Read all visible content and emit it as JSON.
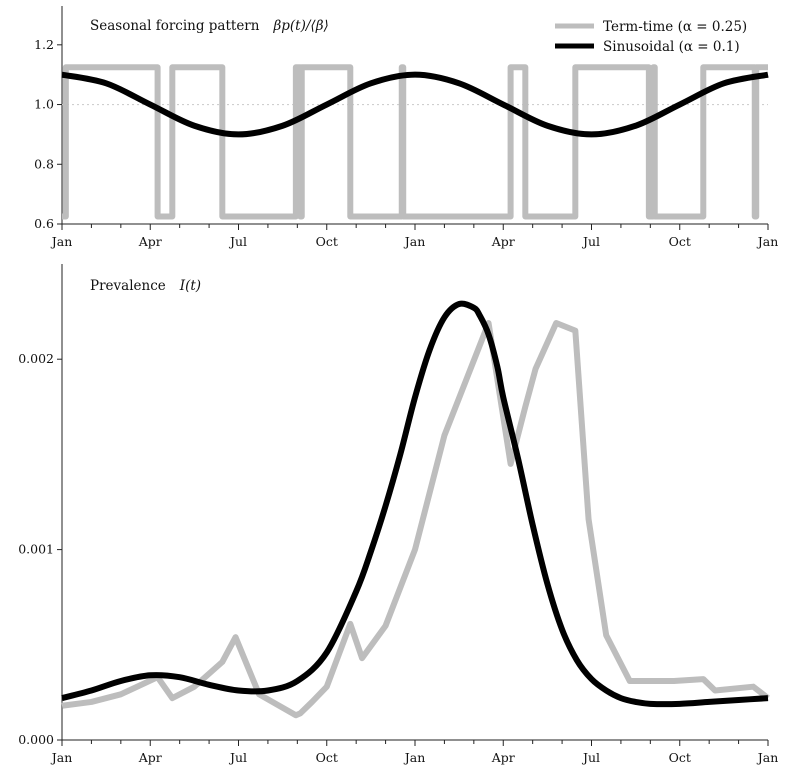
{
  "colors": {
    "term_time": "#bdbdbd",
    "sinusoidal": "#000000",
    "reference_line": "#cfcfcf"
  },
  "chart_data": [
    {
      "type": "line",
      "title": "Seasonal forcing pattern",
      "title_math": "βp(t)/⟨β⟩",
      "xlabel": "",
      "ylabel": "",
      "x_tick_labels": [
        "Jan",
        "Apr",
        "Jul",
        "Oct",
        "Jan",
        "Apr",
        "Jul",
        "Oct",
        "Jan"
      ],
      "y_ticks": [
        "0.6",
        "0.8",
        "1.0",
        "1.2"
      ],
      "xlim_months": [
        0,
        24
      ],
      "ylim": [
        0.6,
        1.33
      ],
      "reference_line": 1.0,
      "grid": false,
      "legend_position": "top-right",
      "series": [
        {
          "name": "Term-time (α = 0.25)",
          "style": "step",
          "breakpoints_months": [
            0,
            0.13,
            3.25,
            3.75,
            5.45,
            7.95,
            8.1,
            8.15,
            9.8,
            11.55,
            11.6,
            15.25,
            15.75,
            17.45,
            19.95,
            20.1,
            20.15,
            21.8,
            23.55,
            23.6,
            24
          ],
          "levels": [
            0.625,
            1.125,
            0.625,
            1.125,
            0.625,
            1.125,
            0.625,
            1.125,
            0.625,
            1.125,
            0.625,
            1.125,
            0.625,
            1.125,
            0.625,
            1.125,
            0.625,
            1.125,
            0.625,
            1.125,
            0.625
          ]
        },
        {
          "name": "Sinusoidal (α = 0.1)",
          "style": "smooth",
          "x_months": [
            0,
            1.5,
            3,
            4.5,
            6,
            7.5,
            9,
            10.5,
            12,
            13.5,
            15,
            16.5,
            18,
            19.5,
            21,
            22.5,
            24
          ],
          "y": [
            1.1,
            1.071,
            1.0,
            0.929,
            0.9,
            0.929,
            1.0,
            1.071,
            1.1,
            1.071,
            1.0,
            0.929,
            0.9,
            0.929,
            1.0,
            1.071,
            1.1
          ]
        }
      ]
    },
    {
      "type": "line",
      "title": "Prevalence",
      "title_math": "I(t)",
      "xlabel": "",
      "ylabel": "",
      "x_tick_labels": [
        "Jan",
        "Apr",
        "Jul",
        "Oct",
        "Jan",
        "Apr",
        "Jul",
        "Oct",
        "Jan"
      ],
      "y_ticks": [
        "0.000",
        "0.001",
        "0.002"
      ],
      "xlim_months": [
        0,
        24
      ],
      "ylim": [
        0,
        0.0025
      ],
      "grid": false,
      "series": [
        {
          "name": "Term-time (α = 0.25)",
          "x_months": [
            0,
            1,
            2,
            3.25,
            3.75,
            4.5,
            5.45,
            5.9,
            6.7,
            7.95,
            8.1,
            8.5,
            9.0,
            9.8,
            10.2,
            11.0,
            12.0,
            13.0,
            14.5,
            15.25,
            15.75,
            16.1,
            16.8,
            17.45,
            17.9,
            18.5,
            19.3,
            19.95,
            20.8,
            21.8,
            22.2,
            23.5,
            24
          ],
          "y": [
            0.00018,
            0.0002,
            0.00024,
            0.00033,
            0.00022,
            0.00028,
            0.00041,
            0.00054,
            0.00024,
            0.00013,
            0.00014,
            0.0002,
            0.00028,
            0.00061,
            0.00043,
            0.0006,
            0.001,
            0.0016,
            0.00219,
            0.00145,
            0.00175,
            0.00195,
            0.00219,
            0.00215,
            0.00116,
            0.00055,
            0.00031,
            0.00031,
            0.00031,
            0.00032,
            0.00026,
            0.00028,
            0.00022
          ]
        },
        {
          "name": "Sinusoidal (α = 0.1)",
          "x_months": [
            0,
            1,
            2,
            3,
            4,
            5,
            6,
            7,
            8,
            9,
            10,
            10.5,
            11,
            11.5,
            12,
            12.5,
            13,
            13.5,
            14,
            14.2,
            14.5,
            14.8,
            15,
            15.5,
            16,
            16.5,
            17,
            17.5,
            18,
            18.5,
            19,
            19.5,
            20,
            21,
            22,
            23,
            24
          ],
          "y": [
            0.00022,
            0.00026,
            0.00031,
            0.00034,
            0.00033,
            0.00029,
            0.00026,
            0.00026,
            0.00031,
            0.00046,
            0.00078,
            0.00099,
            0.00123,
            0.0015,
            0.0018,
            0.00205,
            0.00222,
            0.00229,
            0.00227,
            0.00223,
            0.00213,
            0.00196,
            0.0018,
            0.00148,
            0.00113,
            0.00082,
            0.00058,
            0.00042,
            0.00032,
            0.00026,
            0.00022,
            0.0002,
            0.00019,
            0.00019,
            0.0002,
            0.00021,
            0.00022
          ]
        }
      ]
    }
  ]
}
